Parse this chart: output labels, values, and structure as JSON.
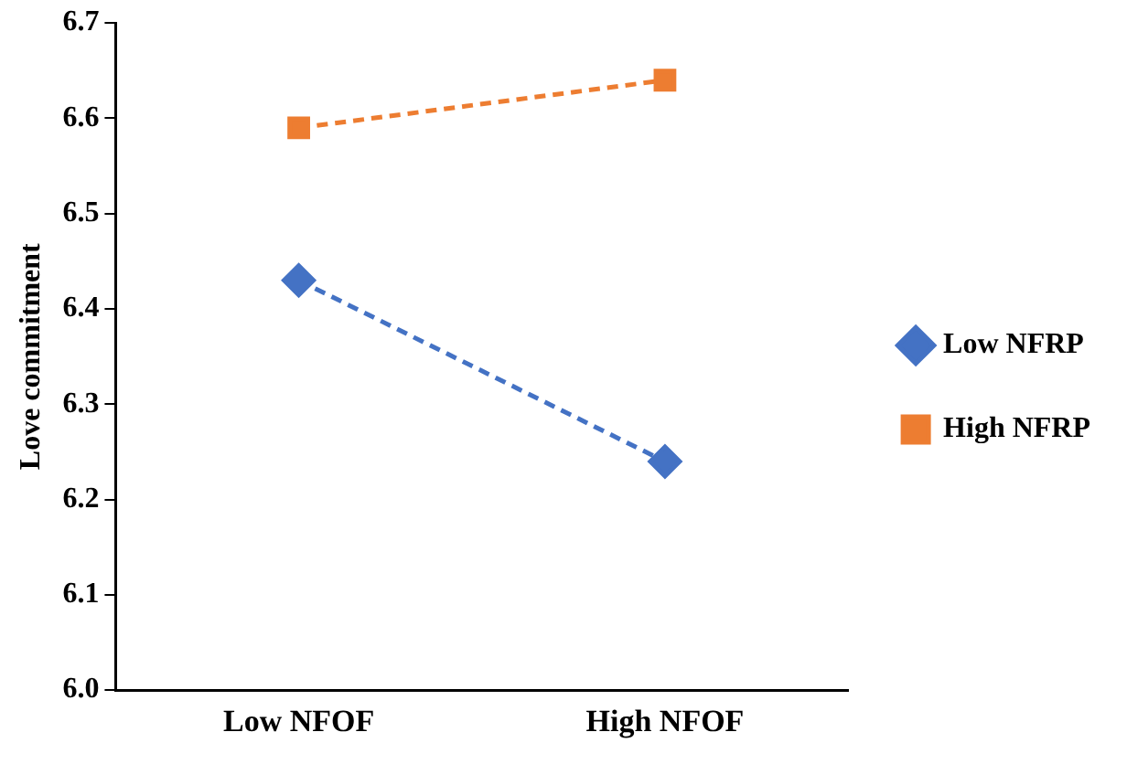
{
  "chart_data": {
    "type": "line",
    "ylabel": "Love commitment",
    "categories": [
      "Low NFOF",
      "High NFOF"
    ],
    "series": [
      {
        "name": "Low NFRP",
        "color": "#4472c4",
        "values": [
          6.43,
          6.24
        ],
        "marker": "diamond"
      },
      {
        "name": "High NFRP",
        "color": "#ed7d31",
        "values": [
          6.59,
          6.64
        ],
        "marker": "square"
      }
    ],
    "ylim": [
      6.0,
      6.7
    ],
    "yticks": [
      {
        "value": 6.0,
        "label": "6.0"
      },
      {
        "value": 6.1,
        "label": "6.1"
      },
      {
        "value": 6.2,
        "label": "6.2"
      },
      {
        "value": 6.3,
        "label": "6.3"
      },
      {
        "value": 6.4,
        "label": "6.4"
      },
      {
        "value": 6.5,
        "label": "6.5"
      },
      {
        "value": 6.6,
        "label": "6.6"
      },
      {
        "value": 6.7,
        "label": "6.7"
      }
    ],
    "grid": false,
    "legend": "right",
    "line_style": "dashed"
  }
}
